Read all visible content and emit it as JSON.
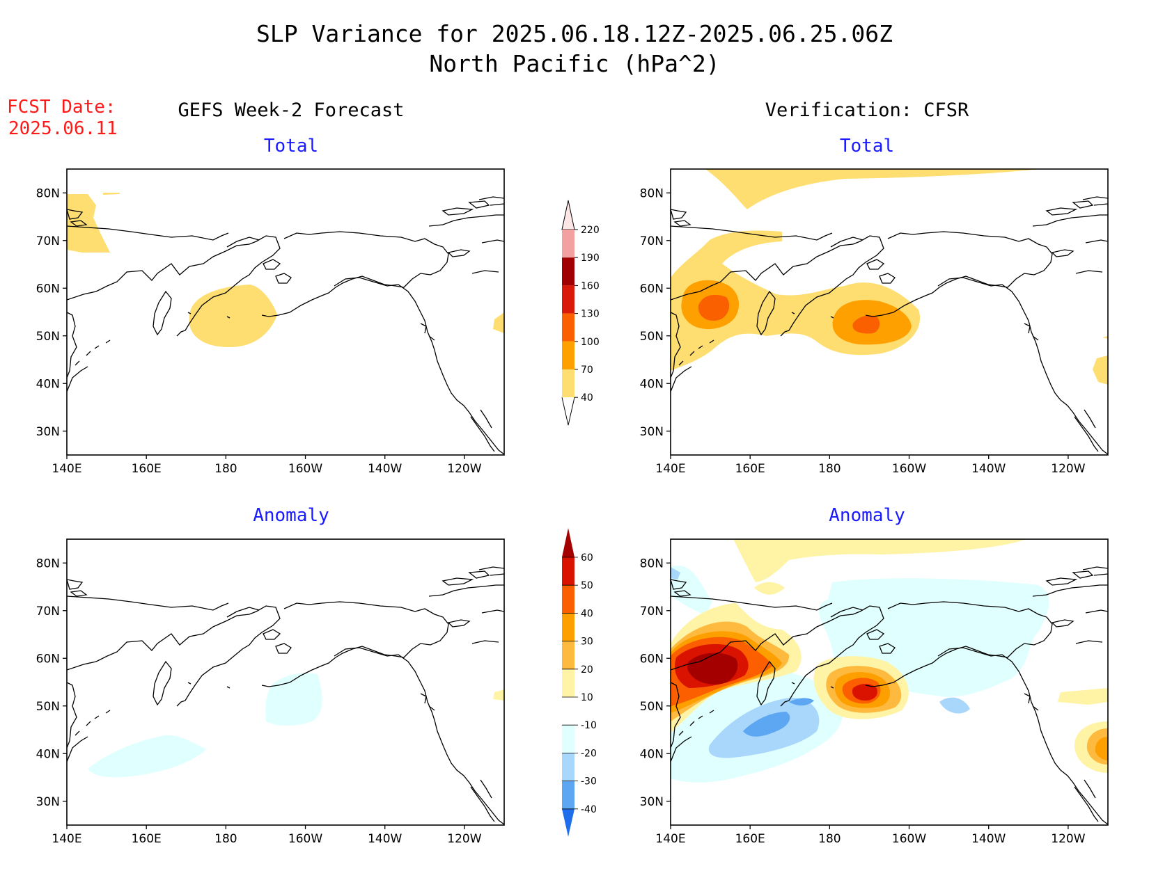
{
  "title": "SLP Variance for 2025.06.18.12Z-2025.06.25.06Z",
  "subtitle": "North Pacific (hPa^2)",
  "fcst_label": "FCST Date:",
  "fcst_date": "2025.06.11",
  "columns": [
    "GEFS Week-2 Forecast",
    "Verification: CFSR"
  ],
  "rows": [
    "Total",
    "Anomaly"
  ],
  "lon_ticks": [
    "140E",
    "160E",
    "180",
    "160W",
    "140W",
    "120W"
  ],
  "lat_ticks": [
    "80N",
    "70N",
    "60N",
    "50N",
    "40N",
    "30N"
  ],
  "colorbars": {
    "total": {
      "labels": [
        "220",
        "190",
        "160",
        "130",
        "100",
        "70",
        "40"
      ],
      "colors": [
        "#fde6e6",
        "#f2a0a0",
        "#a00000",
        "#d91a0a",
        "#fa6000",
        "#fea100",
        "#fede70"
      ]
    },
    "anomaly": {
      "labels": [
        "60",
        "50",
        "40",
        "30",
        "20",
        "10",
        "-10",
        "-20",
        "-30",
        "-40"
      ],
      "colors": [
        "#a50000",
        "#da1200",
        "#fb5f00",
        "#fe9f00",
        "#feba3f",
        "#fff3a6",
        "#ffffff",
        "#e0ffff",
        "#a9d7fb",
        "#5ca6f2",
        "#1e6eeb"
      ]
    }
  },
  "chart_data": [
    {
      "type": "heatmap",
      "panel": "GEFS Week-2 Forecast - Total",
      "units": "hPa^2",
      "xlim": [
        140,
        250
      ],
      "ylim": [
        25,
        85
      ],
      "levels": [
        40,
        70,
        100,
        130,
        160,
        190,
        220
      ],
      "features": [
        {
          "lon": 180,
          "lat": 49,
          "value": 55
        },
        {
          "lon": 143,
          "lat": 75,
          "value": 50
        },
        {
          "lon": 249,
          "lat": 52,
          "value": 45
        },
        {
          "lon": 155,
          "lat": 80,
          "value": 42
        }
      ]
    },
    {
      "type": "heatmap",
      "panel": "Verification: CFSR - Total",
      "units": "hPa^2",
      "xlim": [
        140,
        250
      ],
      "ylim": [
        25,
        85
      ],
      "levels": [
        40,
        70,
        100,
        130,
        160,
        190,
        220
      ],
      "features": [
        {
          "lon": 150,
          "lat": 57,
          "value": 110
        },
        {
          "lon": 190,
          "lat": 51,
          "value": 110
        },
        {
          "lon": 167,
          "lat": 83,
          "value": 50
        },
        {
          "lon": 248,
          "lat": 43,
          "value": 50
        }
      ]
    },
    {
      "type": "heatmap",
      "panel": "GEFS Week-2 Forecast - Anomaly",
      "units": "hPa^2",
      "xlim": [
        140,
        250
      ],
      "ylim": [
        25,
        85
      ],
      "levels": [
        -40,
        -30,
        -20,
        -10,
        10,
        20,
        30,
        40,
        50,
        60
      ],
      "features": [
        {
          "lon": 161,
          "lat": 38,
          "value": -12
        },
        {
          "lon": 196,
          "lat": 50,
          "value": -12
        },
        {
          "lon": 249,
          "lat": 52,
          "value": 12
        }
      ]
    },
    {
      "type": "heatmap",
      "panel": "Verification: CFSR - Anomaly",
      "units": "hPa^2",
      "xlim": [
        140,
        250
      ],
      "ylim": [
        25,
        85
      ],
      "levels": [
        -40,
        -30,
        -20,
        -10,
        10,
        20,
        30,
        40,
        50,
        60
      ],
      "features": [
        {
          "lon": 148,
          "lat": 56,
          "value": 60
        },
        {
          "lon": 190,
          "lat": 52,
          "value": 45
        },
        {
          "lon": 163,
          "lat": 40,
          "value": -35
        },
        {
          "lon": 210,
          "lat": 48,
          "value": -25
        },
        {
          "lon": 167,
          "lat": 83,
          "value": 12
        },
        {
          "lon": 247,
          "lat": 41,
          "value": 32
        }
      ]
    }
  ]
}
